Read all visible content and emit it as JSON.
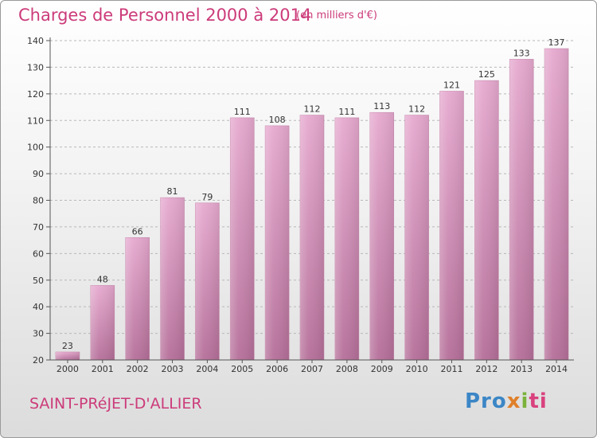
{
  "header": {
    "title": "Charges de Personnel 2000 à 2014",
    "unit_note": "(en milliers d'€)"
  },
  "footer": {
    "place": "SAINT-PRéJET-D'ALLIER",
    "logo": {
      "p1": "Pro",
      "p2": "x",
      "p3": "i",
      "p4": "ti"
    }
  },
  "colors": {
    "accent": "#cc3b7a",
    "bar_top": "#e6a9cf",
    "bar_bottom": "#b56f99",
    "grid": "#b8b8b8"
  },
  "chart_data": {
    "type": "bar",
    "title": "Charges de Personnel 2000 à 2014",
    "subtitle": "(en milliers d'€)",
    "categories": [
      "2000",
      "2001",
      "2002",
      "2003",
      "2004",
      "2005",
      "2006",
      "2007",
      "2008",
      "2009",
      "2010",
      "2011",
      "2012",
      "2013",
      "2014"
    ],
    "values": [
      23,
      48,
      66,
      81,
      79,
      111,
      108,
      112,
      111,
      113,
      112,
      121,
      125,
      133,
      137
    ],
    "data_labels": [
      "23",
      "48",
      "66",
      "81",
      "79",
      "111",
      "108",
      "112",
      "111",
      "113",
      "112",
      "121",
      "125",
      "133",
      "137"
    ],
    "ylim": [
      20,
      140
    ],
    "yticks": [
      20,
      30,
      40,
      50,
      60,
      70,
      80,
      90,
      100,
      110,
      120,
      130,
      140
    ],
    "grid": true,
    "grid_style": "dashed-horizontal",
    "xlabel": "",
    "ylabel": ""
  }
}
